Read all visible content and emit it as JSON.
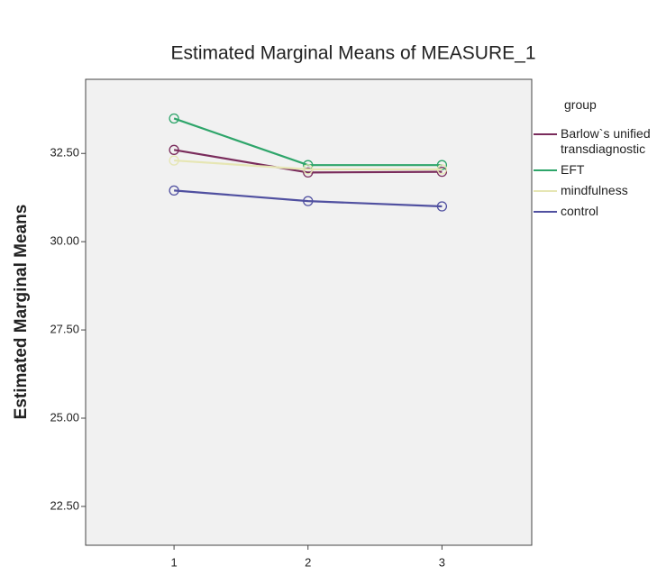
{
  "chart_data": {
    "type": "line",
    "title": "Estimated Marginal Means of MEASURE_1",
    "y_label": "Estimated Marginal Means",
    "legend_title": "group",
    "x": [
      1,
      2,
      3
    ],
    "xlim": [
      0.34,
      3.67
    ],
    "xticks": [
      1,
      2,
      3
    ],
    "ylim": [
      21.4,
      34.6
    ],
    "yticks": [
      {
        "value": 22.5,
        "label": "22.50"
      },
      {
        "value": 25,
        "label": "25.00"
      },
      {
        "value": 27.5,
        "label": "27.50"
      },
      {
        "value": 30,
        "label": "30.00"
      },
      {
        "value": 32.5,
        "label": "32.50"
      }
    ],
    "series": [
      {
        "name": "Barlow`s unified transdiagnostic",
        "color": "#7a2c5c",
        "values": [
          32.6,
          31.96,
          31.98
        ]
      },
      {
        "name": "EFT",
        "color": "#2ea56a",
        "values": [
          33.49,
          32.17,
          32.17
        ]
      },
      {
        "name": "mindfulness",
        "color": "#e6e6b4",
        "values": [
          32.3,
          32.05,
          32.05
        ]
      },
      {
        "name": "control",
        "color": "#5050a0",
        "values": [
          31.45,
          31.15,
          31.0
        ]
      }
    ]
  }
}
